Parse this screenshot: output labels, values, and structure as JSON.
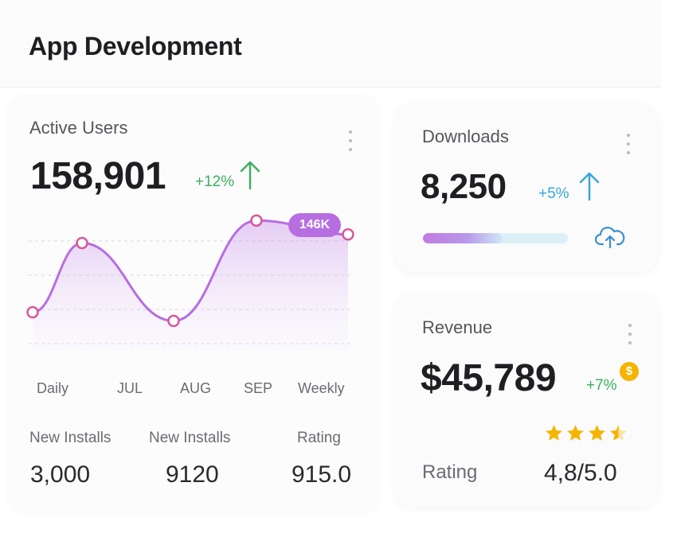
{
  "header": {
    "title": "App Development"
  },
  "active_users": {
    "label": "Active Users",
    "value": "158,901",
    "change": "+12%",
    "peak_badge": "146K",
    "x_labels": [
      "Daily",
      "JUL",
      "AUG",
      "SEP",
      "Weekly"
    ],
    "stats": [
      {
        "label": "New Installs",
        "value": "3,000"
      },
      {
        "label": "New Installs",
        "value": "9120"
      },
      {
        "label": "Rating",
        "value": "915.0"
      }
    ]
  },
  "downloads": {
    "label": "Downloads",
    "value": "8,250",
    "change": "+5%",
    "progress": 0.55,
    "icon": "cloud-upload-icon"
  },
  "revenue": {
    "label": "Revenue",
    "value": "$45,789",
    "change": "+7%",
    "coin_symbol": "$",
    "rating_label": "Rating",
    "rating_value": "4,8/5.0",
    "stars": 3.5
  },
  "colors": {
    "green": "#3fae5f",
    "blue": "#38a8d8",
    "purple_line": "#b66ee0",
    "point_stroke": "#d9589a",
    "star": "#f4b400"
  },
  "chart_data": {
    "type": "area",
    "categories": [
      "Daily",
      "JUL",
      "AUG",
      "SEP",
      "Weekly"
    ],
    "values": [
      40,
      120,
      30,
      146,
      130
    ],
    "ylim": [
      0,
      160
    ],
    "grid": true,
    "annotations": [
      "146K"
    ]
  }
}
